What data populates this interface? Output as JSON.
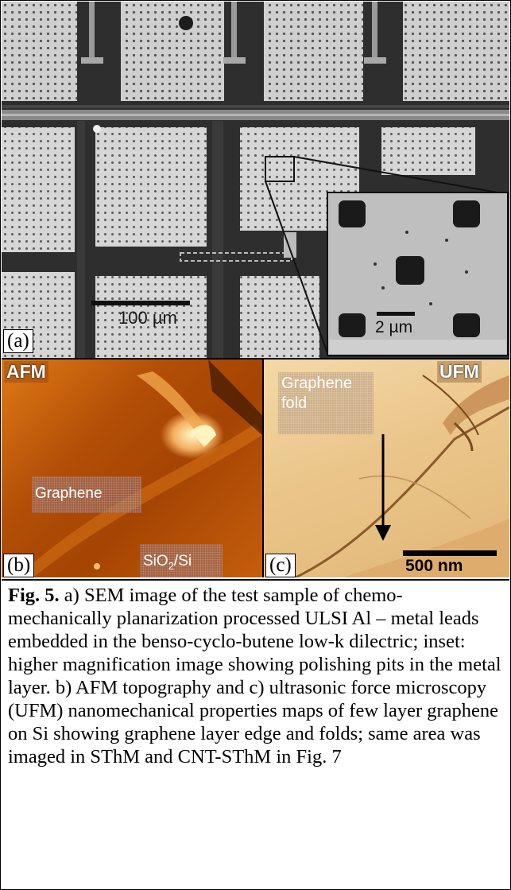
{
  "panel_a": {
    "label": "(a)",
    "scale_bar_text": "100 µm",
    "inset_scale_bar_text": "2 µm",
    "colors": {
      "background": "#2e2e2e",
      "pad": "#c9c9c9",
      "inset": "#bdbdbd"
    }
  },
  "panel_b": {
    "label": "(b)",
    "mode_tag": "AFM",
    "region_graphene": "Graphene",
    "region_substrate_main": "SiO",
    "region_substrate_sub": "2",
    "region_substrate_tail": "/Si"
  },
  "panel_c": {
    "label": "(c)",
    "mode_tag": "UFM",
    "fold_line1": "Graphene",
    "fold_line2": "fold",
    "scale_bar_text": "500 nm"
  },
  "caption": {
    "figure_number": "Fig. 5.",
    "text": " a) SEM image of the test sample of chemo-mechanically planarization processed ULSI Al – metal leads embedded in the benso-cyclo-butene low-k dilectric; inset: higher magnification image showing polishing pits in the metal layer. b) AFM topography and c) ultrasonic force microscopy (UFM) nanomechanical properties maps of few layer graphene on Si showing graphene layer edge and folds; same area was imaged in SThM and CNT-SThM in Fig. 7"
  }
}
